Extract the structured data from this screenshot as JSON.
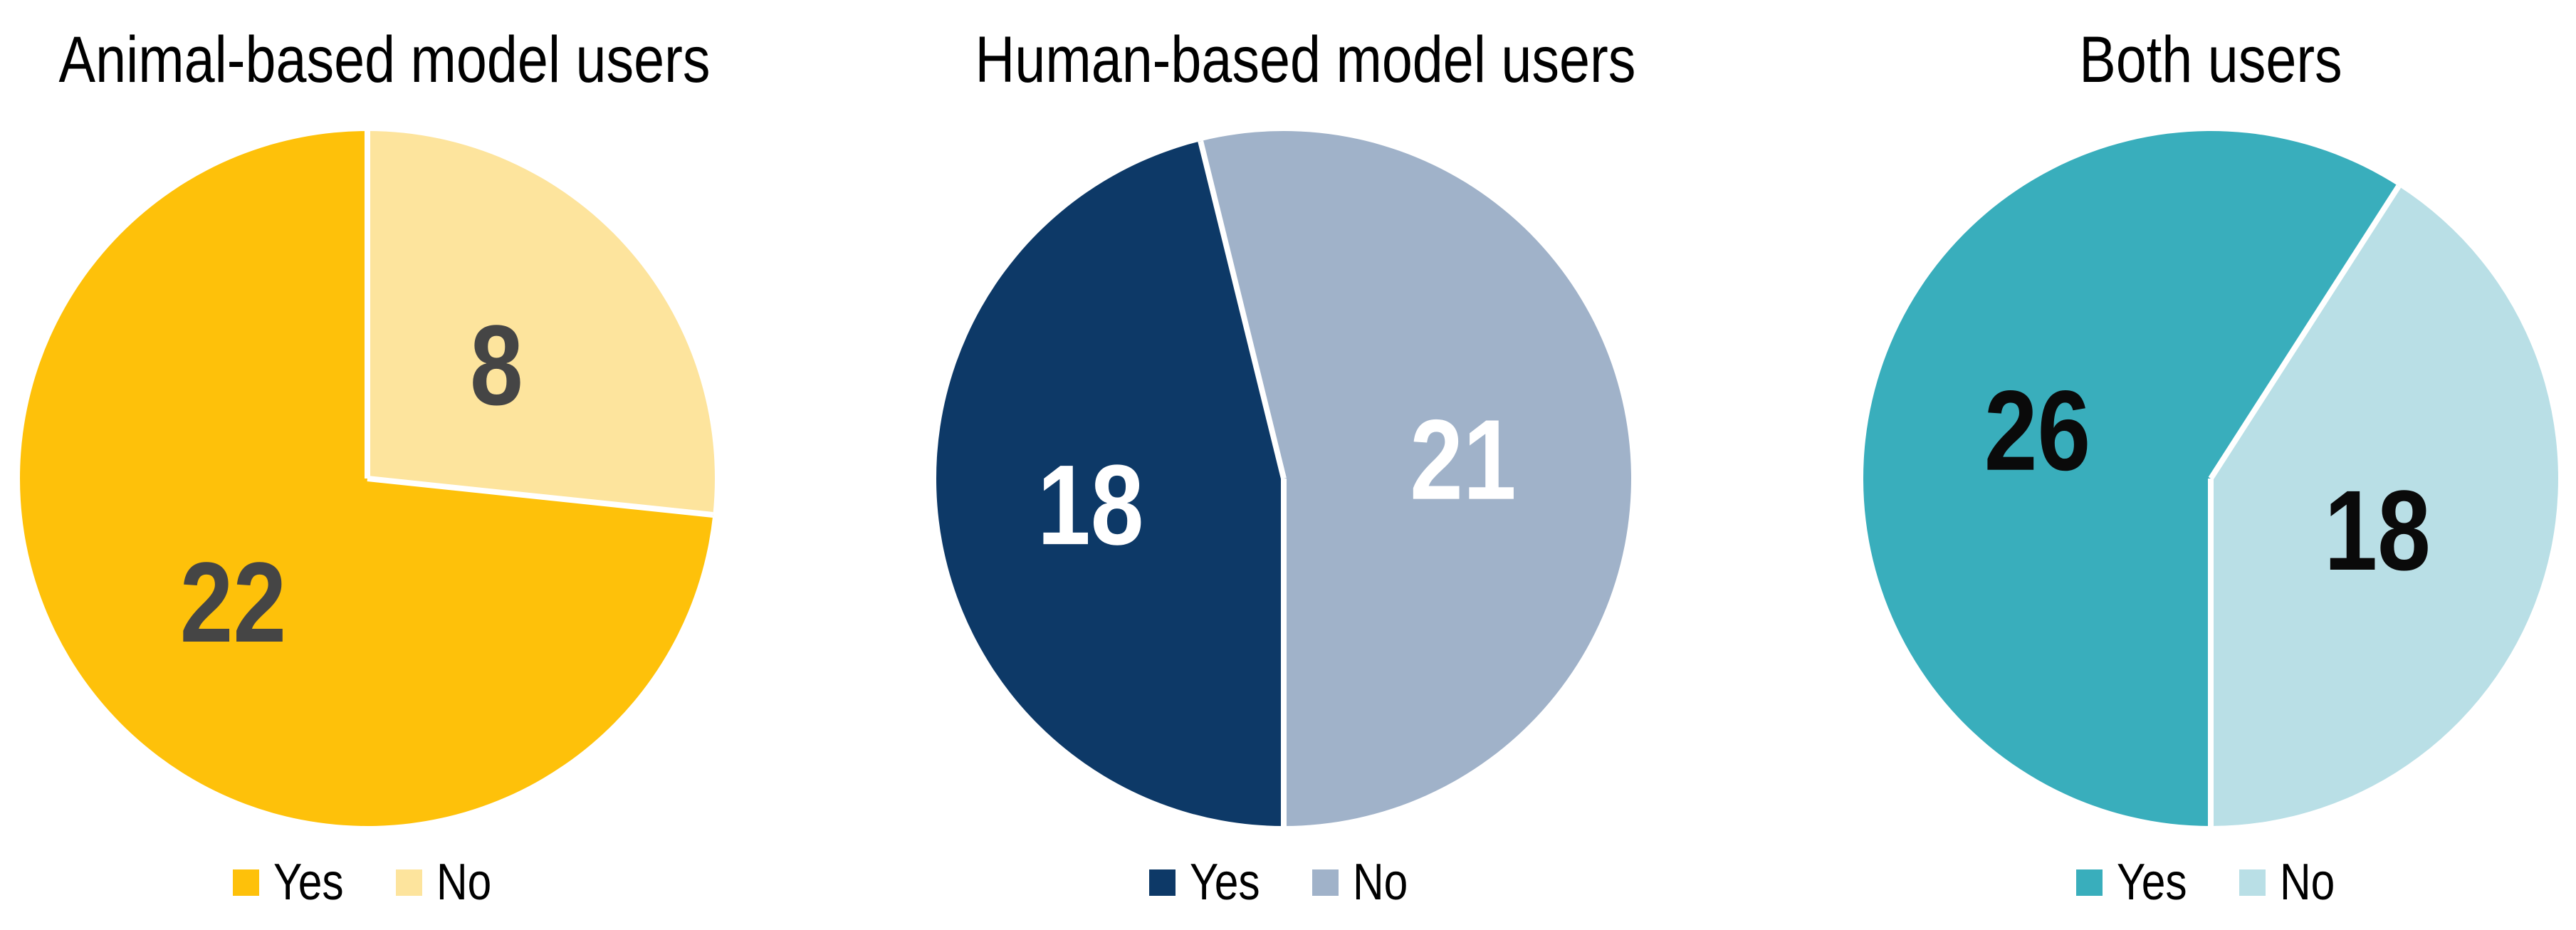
{
  "page": {
    "background": "#FFFFFF"
  },
  "chart_data": [
    {
      "type": "pie",
      "title": "Animal-based model users",
      "legend": [
        "Yes",
        "No"
      ],
      "legend_position": "bottom",
      "total": 30,
      "slices": [
        {
          "label": "No",
          "value": 8,
          "color": "#FDE49D",
          "label_color": "#454545",
          "start_deg": 0,
          "label_r": 0.5
        },
        {
          "label": "Yes",
          "value": 22,
          "color": "#FEC10A",
          "label_color": "#454545",
          "start_deg": 96,
          "label_r": 0.52
        }
      ]
    },
    {
      "type": "pie",
      "title": "Human-based model users",
      "legend": [
        "Yes",
        "No"
      ],
      "legend_position": "bottom",
      "total": 39,
      "slices": [
        {
          "label": "No",
          "value": 21,
          "color": "#A0B2C9",
          "label_color": "#FFFFFF",
          "start_deg": 346.15,
          "label_r": 0.52
        },
        {
          "label": "Yes",
          "value": 18,
          "color": "#0D3967",
          "label_color": "#FFFFFF",
          "start_deg": 180,
          "label_r": 0.56
        }
      ]
    },
    {
      "type": "pie",
      "title": "Both users",
      "legend": [
        "Yes",
        "No"
      ],
      "legend_position": "bottom",
      "total": 44,
      "slices": [
        {
          "label": "No",
          "value": 18,
          "color": "#B9DFE6",
          "label_color": "#0A0A0A",
          "start_deg": 32.73,
          "label_r": 0.5
        },
        {
          "label": "Yes",
          "value": 26,
          "color": "#39AEBC",
          "label_color": "#0A0A0A",
          "start_deg": 180,
          "label_r": 0.52
        }
      ]
    }
  ]
}
